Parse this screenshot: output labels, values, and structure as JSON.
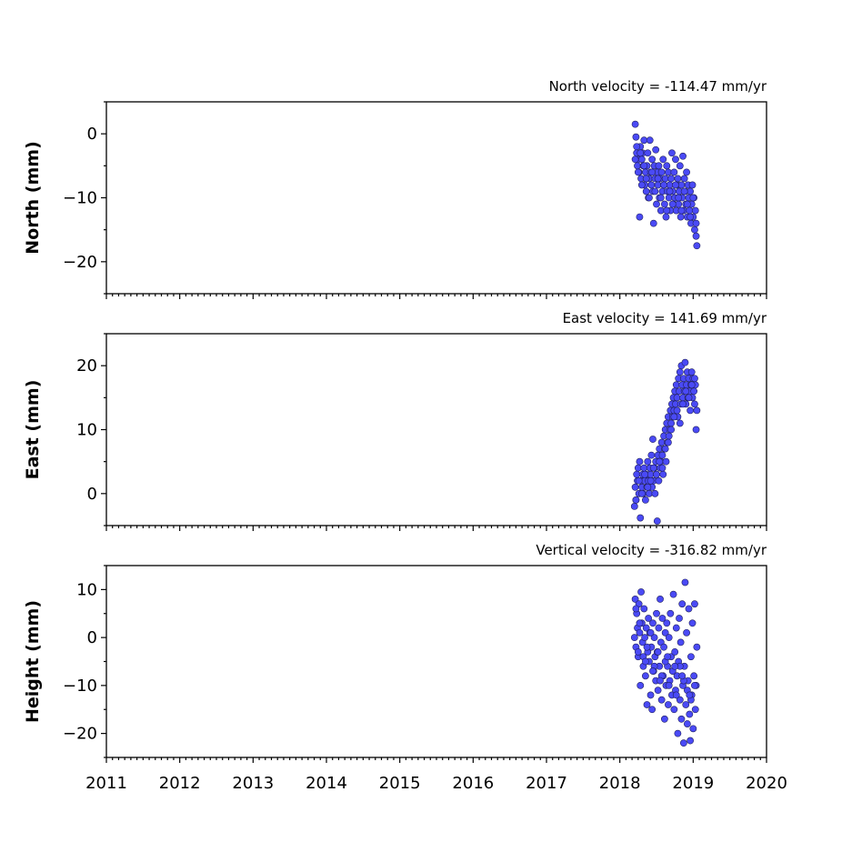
{
  "colors": {
    "marker_fill": "#4a4af5",
    "marker_edge": "#202060",
    "axes": "#000000",
    "background": "#ffffff"
  },
  "chart_data": [
    {
      "type": "scatter",
      "title": "North velocity = -114.47 mm/yr",
      "xlabel": "",
      "ylabel": "North (mm)",
      "xlim": [
        2011,
        2020
      ],
      "ylim": [
        -25,
        5
      ],
      "yticks": [
        0,
        -10,
        -20
      ],
      "xticks": [
        2011,
        2012,
        2013,
        2014,
        2015,
        2016,
        2017,
        2018,
        2019,
        2020
      ],
      "xtick_labels_shown": false,
      "grid": false,
      "legend": "none",
      "series": [
        {
          "x": [
            2018.21,
            2018.22,
            2018.23,
            2018.24,
            2018.25,
            2018.26,
            2018.27,
            2018.28,
            2018.29,
            2018.3,
            2018.31,
            2018.32,
            2018.33,
            2018.34,
            2018.35,
            2018.36,
            2018.37,
            2018.38,
            2018.39,
            2018.4,
            2018.41,
            2018.42,
            2018.43,
            2018.44,
            2018.45,
            2018.46,
            2018.47,
            2018.48,
            2018.49,
            2018.5,
            2018.51,
            2018.52,
            2018.53,
            2018.54,
            2018.55,
            2018.56,
            2018.57,
            2018.58,
            2018.59,
            2018.6,
            2018.61,
            2018.62,
            2018.63,
            2018.64,
            2018.65,
            2018.66,
            2018.67,
            2018.68,
            2018.69,
            2018.7,
            2018.71,
            2018.72,
            2018.73,
            2018.74,
            2018.75,
            2018.76,
            2018.77,
            2018.78,
            2018.79,
            2018.8,
            2018.81,
            2018.82,
            2018.83,
            2018.84,
            2018.85,
            2018.86,
            2018.87,
            2018.88,
            2018.89,
            2018.9,
            2018.91,
            2018.92,
            2018.93,
            2018.94,
            2018.95,
            2018.96,
            2018.97,
            2018.98,
            2018.99,
            2019.0,
            2019.01,
            2019.02,
            2019.03,
            2019.04,
            2019.05,
            2018.21,
            2018.23,
            2018.25,
            2018.28,
            2018.3,
            2018.33,
            2018.36,
            2018.4,
            2018.44,
            2018.48,
            2018.52,
            2018.56,
            2018.6,
            2018.64,
            2018.68,
            2018.72,
            2018.76,
            2018.8,
            2018.84,
            2018.88,
            2018.92,
            2018.96,
            2019.0,
            2019.04
          ],
          "y": [
            1.5,
            -0.5,
            -3,
            -5,
            -4,
            -6,
            -13,
            -2,
            -7,
            -4,
            -3,
            -5,
            -1,
            -8,
            -6,
            -9,
            -5,
            -3,
            -10,
            -7,
            -1,
            -6,
            -8,
            -4,
            -9,
            -14,
            -5,
            -7,
            -2.5,
            -11,
            -6,
            -8,
            -5,
            -10,
            -7,
            -12,
            -6,
            -9,
            -4,
            -8,
            -11,
            -7,
            -13,
            -5,
            -9,
            -6,
            -10,
            -8,
            -12,
            -7,
            -3,
            -9,
            -11,
            -6,
            -10,
            -4,
            -12,
            -8,
            -7,
            -11,
            -9,
            -5,
            -13,
            -8,
            -10,
            -3.5,
            -12,
            -7,
            -9,
            -11,
            -6,
            -13,
            -8,
            -10,
            -12,
            -9,
            -14,
            -11,
            -8,
            -13,
            -10,
            -15,
            -12,
            -16,
            -17.5,
            -4,
            -2,
            -6,
            -3,
            -8,
            -5,
            -7,
            -10,
            -6,
            -9,
            -7,
            -10,
            -8,
            -12,
            -9,
            -11,
            -8,
            -10,
            -12,
            -9,
            -11,
            -13,
            -10,
            -14
          ]
        }
      ]
    },
    {
      "type": "scatter",
      "title": "East velocity = 141.69 mm/yr",
      "xlabel": "",
      "ylabel": "East (mm)",
      "xlim": [
        2011,
        2020
      ],
      "ylim": [
        -5,
        25
      ],
      "yticks": [
        0,
        10,
        20
      ],
      "xticks": [
        2011,
        2012,
        2013,
        2014,
        2015,
        2016,
        2017,
        2018,
        2019,
        2020
      ],
      "xtick_labels_shown": false,
      "grid": false,
      "legend": "none",
      "series": [
        {
          "x": [
            2018.2,
            2018.21,
            2018.22,
            2018.23,
            2018.24,
            2018.25,
            2018.26,
            2018.27,
            2018.28,
            2018.29,
            2018.3,
            2018.31,
            2018.32,
            2018.33,
            2018.34,
            2018.35,
            2018.36,
            2018.37,
            2018.38,
            2018.39,
            2018.4,
            2018.41,
            2018.42,
            2018.43,
            2018.44,
            2018.45,
            2018.46,
            2018.47,
            2018.48,
            2018.49,
            2018.5,
            2018.51,
            2018.52,
            2018.53,
            2018.54,
            2018.55,
            2018.56,
            2018.57,
            2018.58,
            2018.59,
            2018.6,
            2018.61,
            2018.62,
            2018.63,
            2018.64,
            2018.65,
            2018.66,
            2018.67,
            2018.68,
            2018.69,
            2018.7,
            2018.71,
            2018.72,
            2018.73,
            2018.74,
            2018.75,
            2018.76,
            2018.77,
            2018.78,
            2018.79,
            2018.8,
            2018.81,
            2018.82,
            2018.83,
            2018.84,
            2018.85,
            2018.86,
            2018.87,
            2018.88,
            2018.89,
            2018.9,
            2018.91,
            2018.92,
            2018.93,
            2018.94,
            2018.95,
            2018.96,
            2018.97,
            2018.98,
            2018.99,
            2019.0,
            2019.01,
            2019.02,
            2019.03,
            2019.04,
            2019.05,
            2018.22,
            2018.26,
            2018.3,
            2018.34,
            2018.38,
            2018.42,
            2018.46,
            2018.5,
            2018.54,
            2018.58,
            2018.62,
            2018.66,
            2018.7,
            2018.74,
            2018.78,
            2018.82,
            2018.86,
            2018.9,
            2018.94,
            2018.98,
            2019.02
          ],
          "y": [
            -2,
            1,
            -1,
            3,
            2,
            4,
            0,
            5,
            -3.8,
            2,
            1,
            3,
            0,
            4,
            2,
            -1,
            3,
            1,
            5,
            2,
            0,
            4,
            3,
            6,
            1,
            8.5,
            2,
            4,
            0,
            5,
            3,
            -4.3,
            6,
            2,
            7,
            4,
            5,
            8,
            6,
            3,
            9,
            7,
            10,
            5,
            11,
            8,
            12,
            9,
            10,
            13,
            11,
            14,
            12,
            15,
            13,
            16,
            14,
            17,
            15,
            12,
            18,
            16,
            19,
            14,
            20,
            17,
            15,
            18,
            16,
            20.5,
            14,
            17,
            19,
            15,
            18,
            16,
            13,
            17,
            19,
            15,
            18,
            16,
            14,
            17,
            10,
            13,
            -1,
            2,
            0,
            3,
            1,
            2,
            4,
            3,
            5,
            4,
            7,
            8,
            10,
            12,
            13,
            11,
            14,
            16,
            15,
            17,
            18
          ]
        }
      ]
    },
    {
      "type": "scatter",
      "title": "Vertical velocity = -316.82 mm/yr",
      "xlabel": "",
      "ylabel": "Height (mm)",
      "xlim": [
        2011,
        2020
      ],
      "ylim": [
        -25,
        15
      ],
      "yticks": [
        10,
        0,
        -10,
        -20
      ],
      "xticks": [
        2011,
        2012,
        2013,
        2014,
        2015,
        2016,
        2017,
        2018,
        2019,
        2020
      ],
      "xtick_labels_shown": true,
      "grid": false,
      "legend": "none",
      "series": [
        {
          "x": [
            2018.2,
            2018.21,
            2018.22,
            2018.23,
            2018.24,
            2018.25,
            2018.26,
            2018.27,
            2018.28,
            2018.29,
            2018.3,
            2018.31,
            2018.32,
            2018.33,
            2018.34,
            2018.35,
            2018.36,
            2018.37,
            2018.38,
            2018.39,
            2018.4,
            2018.41,
            2018.42,
            2018.43,
            2018.44,
            2018.45,
            2018.46,
            2018.47,
            2018.48,
            2018.49,
            2018.5,
            2018.51,
            2018.52,
            2018.53,
            2018.54,
            2018.55,
            2018.56,
            2018.57,
            2018.58,
            2018.59,
            2018.6,
            2018.61,
            2018.62,
            2018.63,
            2018.64,
            2018.65,
            2018.66,
            2018.67,
            2018.68,
            2018.69,
            2018.7,
            2018.71,
            2018.72,
            2018.73,
            2018.74,
            2018.75,
            2018.76,
            2018.77,
            2018.78,
            2018.79,
            2018.8,
            2018.81,
            2018.82,
            2018.83,
            2018.84,
            2018.85,
            2018.86,
            2018.87,
            2018.88,
            2018.89,
            2018.9,
            2018.91,
            2018.92,
            2018.93,
            2018.94,
            2018.95,
            2018.96,
            2018.97,
            2018.98,
            2018.99,
            2019.0,
            2019.01,
            2019.02,
            2019.03,
            2019.04,
            2019.05,
            2018.22,
            2018.27,
            2018.32,
            2018.37,
            2018.42,
            2018.47,
            2018.52,
            2018.57,
            2018.62,
            2018.67,
            2018.72,
            2018.77,
            2018.82,
            2018.87,
            2018.92,
            2018.97,
            2019.02,
            2018.25,
            2018.35,
            2018.45,
            2018.55,
            2018.65,
            2018.75,
            2018.85,
            2018.95
          ],
          "y": [
            0,
            8,
            -2,
            5,
            2,
            -4,
            7,
            1,
            -10,
            9.5,
            3,
            -1,
            -6,
            6,
            0,
            -8,
            2,
            -14,
            -3,
            4,
            -5,
            1,
            -12,
            -2,
            -15,
            3,
            -7,
            0,
            -4,
            -9,
            5,
            -3,
            -11,
            2,
            -6,
            8,
            -1,
            -13,
            4,
            -8,
            -2,
            -17,
            1,
            -10,
            3,
            -6,
            -14,
            0,
            -9,
            5,
            -4,
            -12,
            -7,
            9,
            -15,
            -3,
            -11,
            2,
            -8,
            -20,
            -5,
            4,
            -13,
            -1,
            -17,
            7,
            -10,
            -22,
            -6,
            11.5,
            -14,
            1,
            -18,
            -9,
            6,
            -16,
            -21.5,
            -4,
            -12,
            3,
            -19,
            -8,
            7,
            -15,
            -10,
            -2,
            6,
            3,
            -4,
            -2,
            1,
            -6,
            -3,
            -8,
            -5,
            -10,
            -7,
            -12,
            -6,
            -9,
            -11,
            -13,
            -10,
            -3,
            -5,
            -7,
            -9,
            -4,
            -6,
            -8,
            -12
          ]
        }
      ]
    }
  ]
}
